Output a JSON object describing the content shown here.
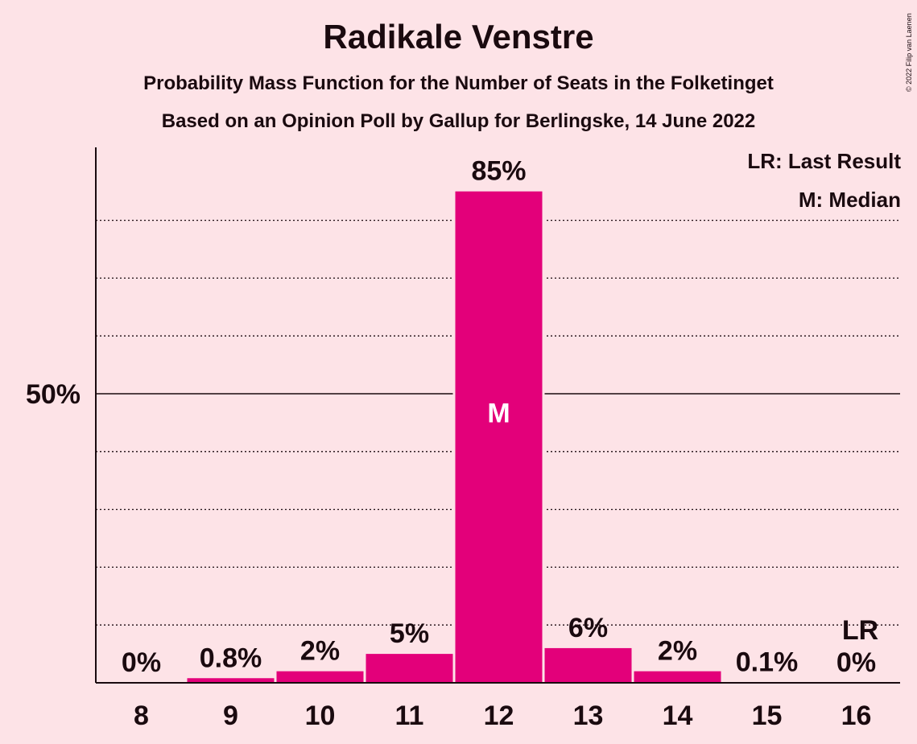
{
  "title": "Radikale Venstre",
  "subtitle1": "Probability Mass Function for the Number of Seats in the Folketinget",
  "subtitle2": "Based on an Opinion Poll by Gallup for Berlingske, 14 June 2022",
  "legend": {
    "last_result": "LR: Last Result",
    "median": "M: Median"
  },
  "copyright": "© 2022 Filip van Laenen",
  "colors": {
    "background": "#fde3e7",
    "bar": "#e3007a",
    "text": "#1a0a0f"
  },
  "chart_data": {
    "type": "bar",
    "categories": [
      "8",
      "9",
      "10",
      "11",
      "12",
      "13",
      "14",
      "15",
      "16"
    ],
    "values": [
      0,
      0.8,
      2,
      5,
      85,
      6,
      2,
      0.1,
      0
    ],
    "value_labels": [
      "0%",
      "0.8%",
      "2%",
      "5%",
      "85%",
      "6%",
      "2%",
      "0.1%",
      "0%"
    ],
    "ylim": [
      0,
      92
    ],
    "yticks": [
      {
        "value": 50,
        "label": "50%"
      }
    ],
    "gridlines": [
      10,
      20,
      30,
      40,
      60,
      70,
      80
    ],
    "median_category": "12",
    "median_marker": "M",
    "last_result_category": "16",
    "last_result_marker": "LR",
    "legend_position": "top-right"
  }
}
